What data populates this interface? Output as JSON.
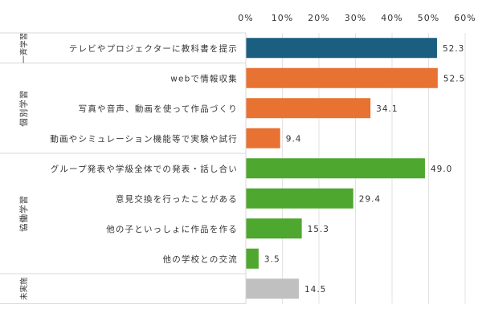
{
  "chart_data": {
    "type": "bar",
    "orientation": "horizontal",
    "xlim": [
      0,
      60
    ],
    "x_ticks": [
      "0%",
      "10%",
      "20%",
      "30%",
      "40%",
      "50%",
      "60%"
    ],
    "grid": true,
    "groups": [
      {
        "label": "一斉学習",
        "items": [
          {
            "category": "テレビやプロジェクターに教科書を提示",
            "value": 52.3,
            "label": "52.3"
          }
        ],
        "color": "#1a5f80"
      },
      {
        "label": "個別学習",
        "items": [
          {
            "category": "webで情報収集",
            "value": 52.5,
            "label": "52.5"
          },
          {
            "category": "写真や音声、動画を使って作品づくり",
            "value": 34.1,
            "label": "34.1"
          },
          {
            "category": "動画やシミュレーション機能等で実験や試行",
            "value": 9.4,
            "label": "9.4"
          }
        ],
        "color": "#e87232"
      },
      {
        "label": "協働学習",
        "items": [
          {
            "category": "グループ発表や学級全体での発表・話し合い",
            "value": 49.0,
            "label": "49.0"
          },
          {
            "category": "意見交換を行ったことがある",
            "value": 29.4,
            "label": "29.4"
          },
          {
            "category": "他の子といっしょに作品を作る",
            "value": 15.3,
            "label": "15.3"
          },
          {
            "category": "他の学校との交流",
            "value": 3.5,
            "label": "3.5"
          }
        ],
        "color": "#4ea72e"
      },
      {
        "label": "未実施",
        "items": [
          {
            "category": "",
            "value": 14.5,
            "label": "14.5"
          }
        ],
        "color": "#c0c0c0"
      }
    ]
  }
}
